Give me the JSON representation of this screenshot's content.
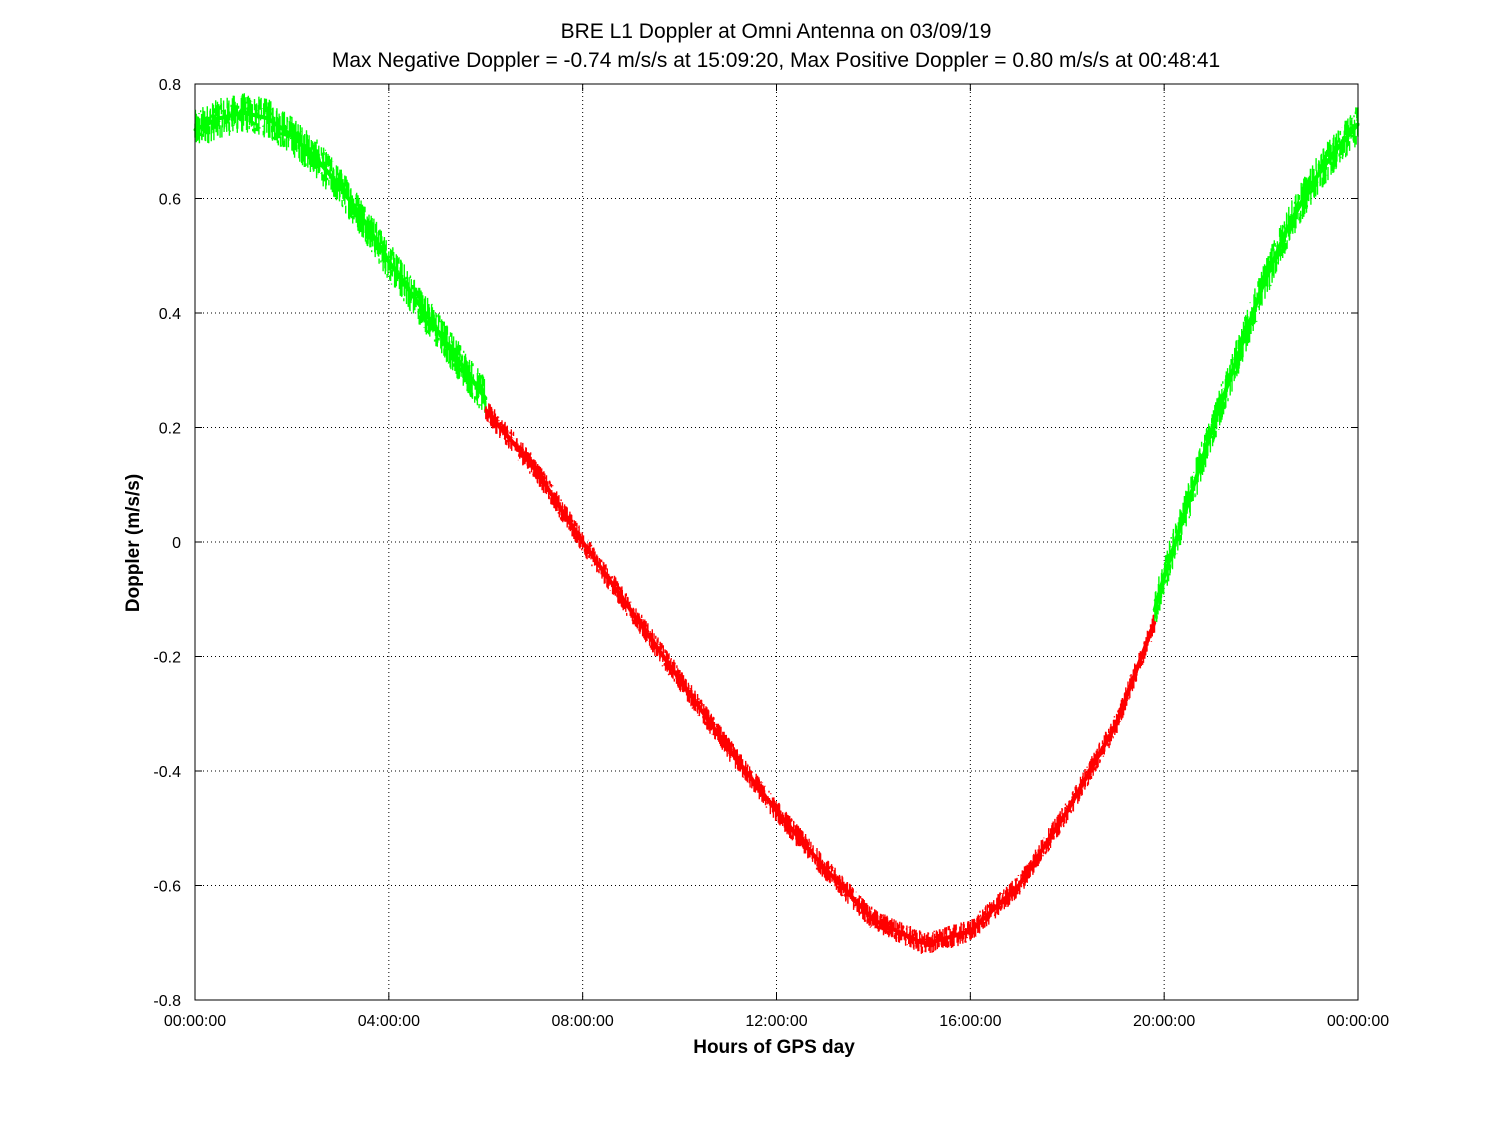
{
  "chart_data": {
    "type": "scatter",
    "title": "BRE  L1 Doppler at Omni Antenna on 03/09/19",
    "subtitle": "Max Negative Doppler = -0.74 m/s/s  at 15:09:20,   Max Positive Doppler = 0.80 m/s/s  at 00:48:41",
    "xlabel": "Hours of GPS day",
    "ylabel": "Doppler (m/s/s)",
    "xlim": [
      0,
      24
    ],
    "ylim": [
      -0.8,
      0.8
    ],
    "x_ticks": [
      0,
      4,
      8,
      12,
      16,
      20,
      24
    ],
    "x_tick_labels": [
      "00:00:00",
      "04:00:00",
      "08:00:00",
      "12:00:00",
      "16:00:00",
      "20:00:00",
      "00:00:00"
    ],
    "y_ticks": [
      -0.8,
      -0.6,
      -0.4,
      -0.2,
      0,
      0.2,
      0.4,
      0.6,
      0.8
    ],
    "y_tick_labels": [
      "-0.8",
      "-0.6",
      "-0.4",
      "-0.2",
      "0",
      "0.2",
      "0.4",
      "0.6",
      "0.8"
    ],
    "grid": true,
    "series": [
      {
        "color": "#00ff00",
        "band": 0.035,
        "x": [
          0,
          0.5,
          1,
          1.5,
          2,
          2.5,
          3,
          3.5,
          4,
          4.5,
          5,
          5.5,
          6
        ],
        "y": [
          0.72,
          0.74,
          0.75,
          0.74,
          0.71,
          0.67,
          0.62,
          0.56,
          0.49,
          0.43,
          0.37,
          0.31,
          0.25
        ]
      },
      {
        "color": "#ff0000",
        "band": 0.02,
        "x": [
          6,
          7,
          8,
          9,
          10,
          11,
          12,
          13,
          14,
          15,
          15.16,
          16,
          17,
          18,
          19,
          19.8
        ],
        "y": [
          0.23,
          0.13,
          0.0,
          -0.12,
          -0.24,
          -0.36,
          -0.47,
          -0.57,
          -0.66,
          -0.7,
          -0.7,
          -0.68,
          -0.6,
          -0.47,
          -0.32,
          -0.14
        ]
      },
      {
        "color": "#00ff00",
        "band": 0.035,
        "x": [
          19.8,
          20,
          20.5,
          21,
          21.5,
          22,
          22.5,
          23,
          23.5,
          24
        ],
        "y": [
          -0.12,
          -0.06,
          0.07,
          0.2,
          0.32,
          0.44,
          0.54,
          0.62,
          0.68,
          0.73
        ]
      }
    ]
  }
}
